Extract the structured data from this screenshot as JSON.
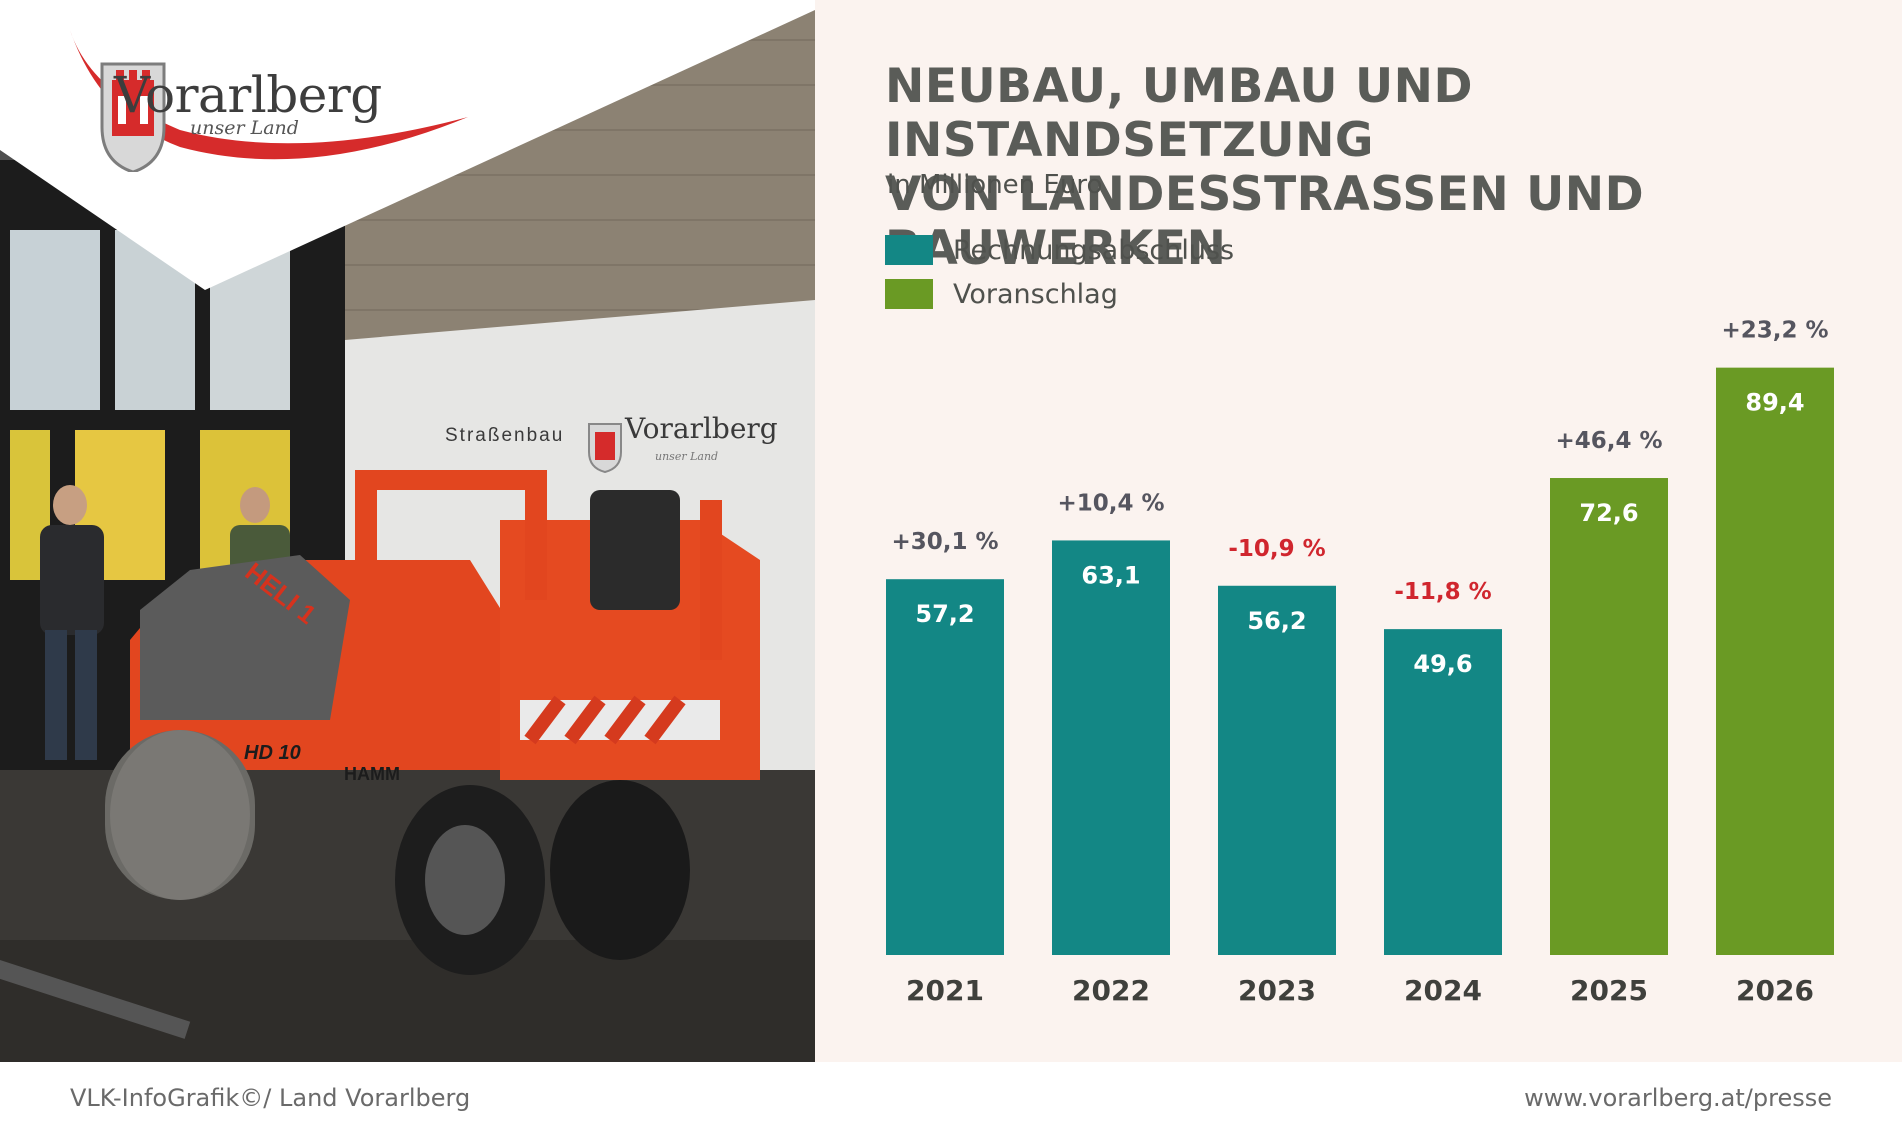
{
  "logo": {
    "name": "Vorarlberg",
    "tagline": "unser Land"
  },
  "photo": {
    "wall_sign_prefix": "Straßenbau",
    "wall_sign_name": "Vorarlberg",
    "wall_sign_tagline": "unser Land",
    "roller_brand": "HAMM",
    "roller_model": "HD 10",
    "roller_label": "HELI 1"
  },
  "title_line1": "NEUBAU, UMBAU UND INSTANDSETZUNG",
  "title_line2": "VON LANDESSTRASSEN UND BAUWERKEN",
  "subtitle": "in Millionen Euro",
  "legend": [
    {
      "label": "Rechnungsabschluss",
      "color": "#138785"
    },
    {
      "label": "Voranschlag",
      "color": "#6a9a24"
    }
  ],
  "chart_data": {
    "type": "bar",
    "title": "NEUBAU, UMBAU UND INSTANDSETZUNG VON LANDESSTRASSEN UND BAUWERKEN",
    "ylabel": "in Millionen Euro",
    "categories": [
      "2021",
      "2022",
      "2023",
      "2024",
      "2025",
      "2026"
    ],
    "values": [
      57.2,
      63.1,
      56.2,
      49.6,
      72.6,
      89.4
    ],
    "value_labels": [
      "57,2",
      "63,1",
      "56,2",
      "49,6",
      "72,6",
      "89,4"
    ],
    "change_labels": [
      "+30,1 %",
      "+10,4 %",
      "-10,9 %",
      "-11,8 %",
      "+46,4 %",
      "+23,2 %"
    ],
    "series_per_bar": [
      "Rechnungsabschluss",
      "Rechnungsabschluss",
      "Rechnungsabschluss",
      "Rechnungsabschluss",
      "Voranschlag",
      "Voranschlag"
    ],
    "colors": {
      "Rechnungsabschluss": "#138785",
      "Voranschlag": "#6a9a24",
      "change_positive": "#55555f",
      "change_negative": "#d0262e"
    },
    "ylim": [
      0,
      100
    ],
    "grid": false,
    "legend_position": "top-left"
  },
  "footer": {
    "left": "VLK-InfoGrafik©/ Land Vorarlberg",
    "right": "www.vorarlberg.at/presse"
  }
}
